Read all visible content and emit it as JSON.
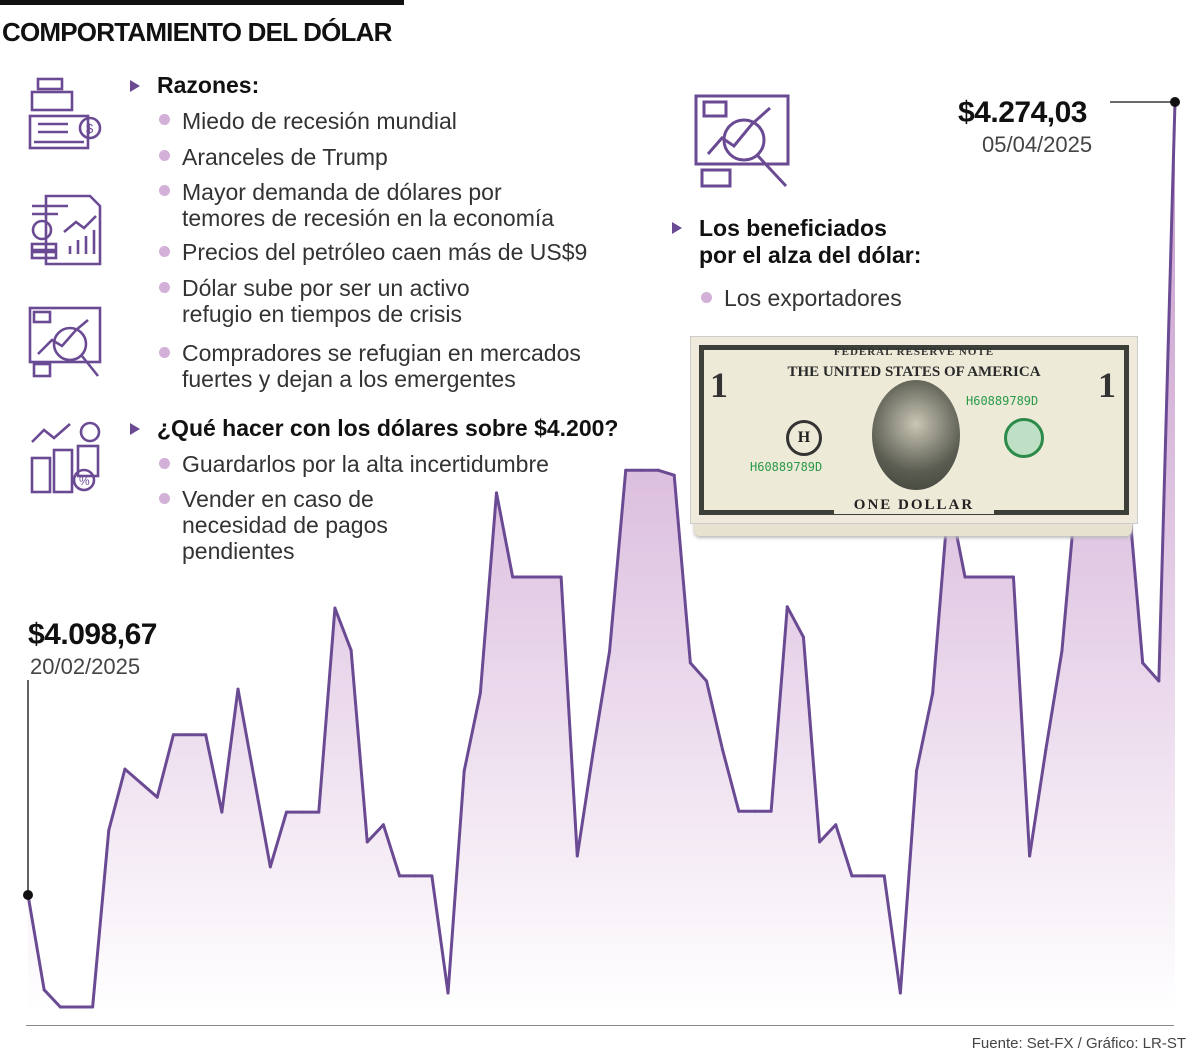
{
  "title": "COMPORTAMIENTO DEL DÓLAR",
  "sections": {
    "reasons": {
      "heading": "Razones:",
      "items": [
        "Miedo de recesión mundial",
        "Aranceles de Trump",
        [
          "Mayor demanda de dólares por",
          "temores de recesión en la economía"
        ],
        "Precios del petróleo caen más de US$9",
        [
          "Dólar sube por ser un activo",
          "refugio en tiempos de crisis"
        ],
        [
          "Compradores se refugian en mercados",
          "fuertes y dejan a los emergentes"
        ]
      ]
    },
    "what_to_do": {
      "heading": "¿Qué hacer con los dólares sobre $4.200?",
      "items": [
        "Guardarlos por la alta incertidumbre",
        [
          "Vender en caso de",
          "necesidad de pagos",
          "pendientes"
        ]
      ]
    },
    "beneficiaries": {
      "heading": [
        "Los beneficiados",
        "por el alza del dólar:"
      ],
      "items": [
        "Los exportadores"
      ]
    }
  },
  "icons": [
    "cash-register-icon",
    "financial-report-icon",
    "analysis-magnifier-icon",
    "coins-growth-icon",
    "market-analysis-icon",
    "dollar-bill-stack-image"
  ],
  "bill_text": {
    "top": "FEDERAL RESERVE NOTE",
    "country": "THE UNITED STATES OF AMERICA",
    "serial": "H60889789D",
    "bottom": "ONE DOLLAR",
    "seal": "H",
    "denomination": "1"
  },
  "annotations": {
    "start": {
      "value": "$4.098,67",
      "date": "20/02/2025"
    },
    "end": {
      "value": "$4.274,03",
      "date": "05/04/2025"
    }
  },
  "footer": "Fuente: Set-FX / Gráfico: LR-ST",
  "colors": {
    "line": "#6b4a94",
    "fill_top": "#cfa8d2",
    "fill_bottom": "#ffffff",
    "bullet": "#d3b0d8",
    "text": "#222222"
  },
  "chart_data": {
    "type": "area",
    "title": "COMPORTAMIENTO DEL DÓLAR",
    "xlabel": "",
    "ylabel": "",
    "x_start": "20/02/2025",
    "x_end": "05/04/2025",
    "grid": false,
    "values": [
      4098.67,
      4077.7,
      4073.9,
      4073.9,
      4073.9,
      4113.0,
      4126.5,
      4123.4,
      4120.3,
      4134.1,
      4134.1,
      4134.1,
      4117.0,
      4144.2,
      4124.5,
      4104.9,
      4117.0,
      4117.0,
      4117.0,
      4162.1,
      4152.8,
      4110.4,
      4114.2,
      4102.9,
      4102.9,
      4102.9,
      4077.0,
      4126.1,
      4143.3,
      4187.6,
      4169.0,
      4169.0,
      4169.0,
      4169.0,
      4107.3,
      4130.7,
      4152.6,
      4192.6,
      4192.6,
      4192.6,
      4191.5,
      4150.0,
      4146.0,
      4130.7,
      4117.2,
      4117.2,
      4117.2,
      4162.4,
      4155.7,
      4110.4,
      4114.2,
      4102.9,
      4102.9,
      4102.9,
      4077.0,
      4126.1,
      4143.3,
      4187.1,
      4169.0,
      4169.0,
      4169.0,
      4169.0,
      4107.3,
      4130.7,
      4152.6,
      4192.6,
      4192.6,
      4192.6,
      4191.5,
      4150.0,
      4146.0,
      4274.03
    ],
    "labeled_points": [
      {
        "index": 0,
        "value": 4098.67,
        "label": "$4.098,67",
        "date": "20/02/2025"
      },
      {
        "index": 71,
        "value": 4274.03,
        "label": "$4.274,03",
        "date": "05/04/2025"
      }
    ]
  }
}
